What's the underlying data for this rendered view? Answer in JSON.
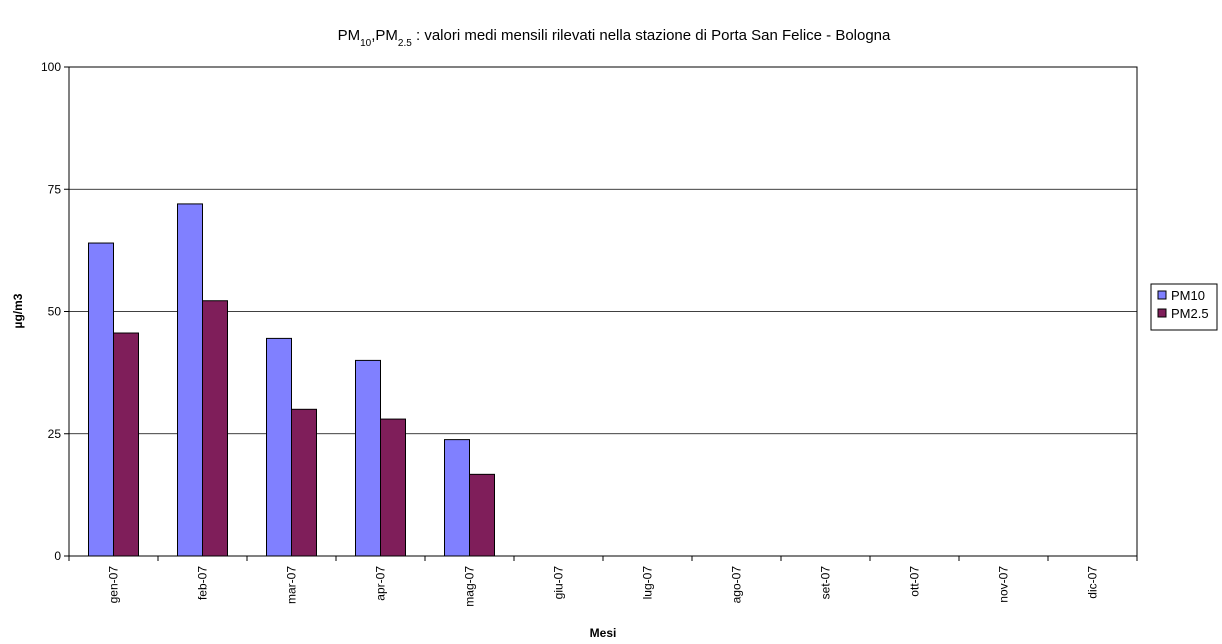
{
  "chart_data": {
    "type": "bar",
    "title_parts": [
      "PM",
      "10",
      ",PM",
      "2.5",
      " : valori medi mensili rilevati nella stazione di Porta San Felice - Bologna"
    ],
    "xlabel": "Mesi",
    "ylabel": "µg/m3",
    "ylim": [
      0,
      100
    ],
    "yticks": [
      0,
      25,
      50,
      75,
      100
    ],
    "grid": true,
    "legend_position": "right",
    "categories": [
      "gen-07",
      "feb-07",
      "mar-07",
      "apr-07",
      "mag-07",
      "giu-07",
      "lug-07",
      "ago-07",
      "set-07",
      "ott-07",
      "nov-07",
      "dic-07"
    ],
    "series": [
      {
        "name": "PM10",
        "color": "#8080ff",
        "values": [
          64,
          72,
          44.5,
          40,
          23.8,
          null,
          null,
          null,
          null,
          null,
          null,
          null
        ]
      },
      {
        "name": "PM2.5",
        "color": "#7f1e5a",
        "values": [
          45.6,
          52.2,
          30,
          28,
          16.7,
          null,
          null,
          null,
          null,
          null,
          null,
          null
        ]
      }
    ]
  }
}
